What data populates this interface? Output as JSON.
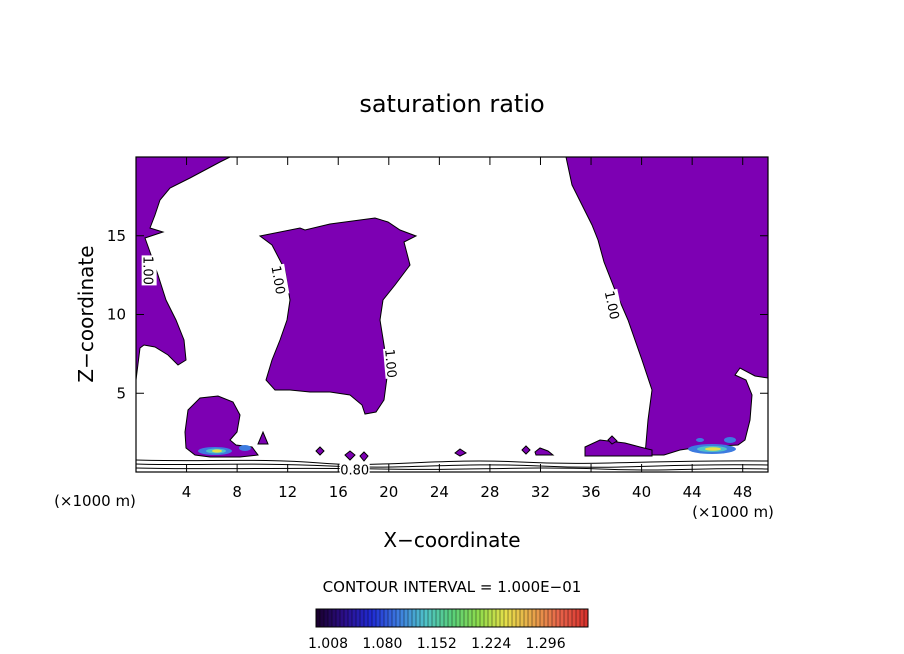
{
  "chart_data": {
    "type": "contour",
    "title": "saturation ratio",
    "xlabel": "X−coordinate",
    "ylabel": "Z−coordinate",
    "x_unit_left": "(×1000 m)",
    "x_unit_right": "(×1000 m)",
    "xlim": [
      0,
      50
    ],
    "ylim": [
      0,
      20
    ],
    "x_ticks": [
      4,
      8,
      12,
      16,
      20,
      24,
      28,
      32,
      36,
      40,
      44,
      48
    ],
    "y_ticks": [
      5,
      10,
      15
    ],
    "contour_interval_text": "CONTOUR INTERVAL = 1.000E−01",
    "contour_labels": [
      {
        "text": "1.00",
        "x": 1.0,
        "z": 12.8,
        "angle": 90
      },
      {
        "text": "1.00",
        "x": 11.3,
        "z": 12.2,
        "angle": 80
      },
      {
        "text": "1.00",
        "x": 20.2,
        "z": 6.9,
        "angle": 85
      },
      {
        "text": "1.00",
        "x": 37.7,
        "z": 10.6,
        "angle": 78
      },
      {
        "text": "0.80",
        "x": 17.3,
        "z": 0.15,
        "angle": 0
      }
    ],
    "colorbar": {
      "tick_labels": [
        "1.008",
        "1.080",
        "1.152",
        "1.224",
        "1.296"
      ],
      "colors": [
        "#1a0030",
        "#2c0f8c",
        "#1f2bd4",
        "#3d7be0",
        "#4fc3c8",
        "#58d07a",
        "#8fdc4c",
        "#e6e04a",
        "#e8a64a",
        "#e8644a",
        "#d8342e"
      ]
    },
    "fill_color": "#7d00b3"
  }
}
